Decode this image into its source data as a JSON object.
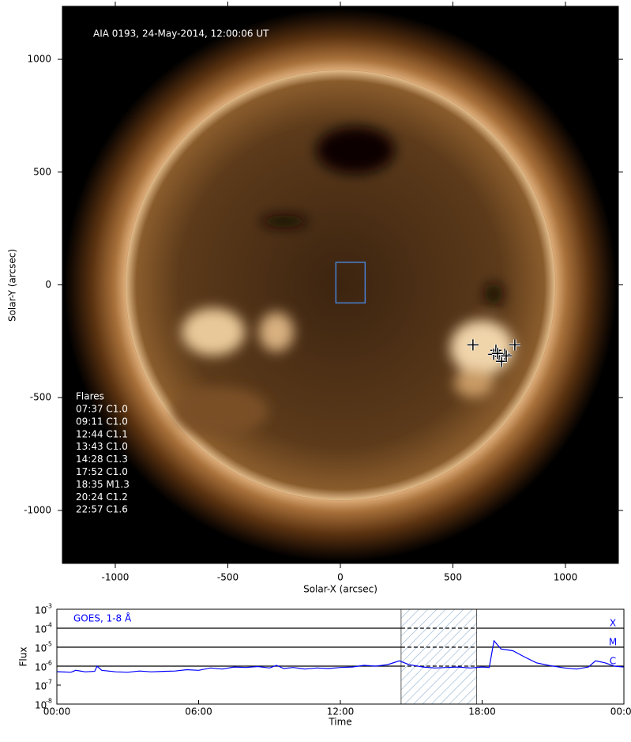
{
  "chart_data": [
    {
      "type": "image",
      "title": "AIA 0193, 24-May-2014, 12:00:06 UT",
      "xlabel": "Solar-X (arcsec)",
      "ylabel": "Solar-Y (arcsec)",
      "xlim": [
        -1235,
        1235
      ],
      "ylim": [
        -1235,
        1235
      ],
      "xticks": [
        -1000,
        -500,
        0,
        500,
        1000
      ],
      "yticks": [
        -1000,
        -500,
        0,
        500,
        1000
      ],
      "box": {
        "x": [
          -20,
          110
        ],
        "y": [
          -80,
          100
        ],
        "color": "#4a7fd0"
      },
      "flares_title": "Flares",
      "flares": [
        {
          "label": "07:37 C1.0",
          "x": 589,
          "y": -266
        },
        {
          "label": "09:11 C1.0",
          "x": 691,
          "y": -290
        },
        {
          "label": "12:44 C1.1",
          "x": 730,
          "y": -308
        },
        {
          "label": "13:43 C1.0",
          "x": 705,
          "y": -318
        },
        {
          "label": "14:28 C1.3",
          "x": 681,
          "y": -308
        },
        {
          "label": "17:52 C1.0",
          "x": 775,
          "y": -266
        },
        {
          "label": "18:35 M1.3",
          "x": 716,
          "y": -339
        },
        {
          "label": "20:24 C1.2",
          "x": 698,
          "y": -304
        },
        {
          "label": "22:57 C1.6",
          "x": 737,
          "y": -315
        }
      ]
    },
    {
      "type": "line",
      "xlabel": "Time",
      "ylabel": "Flux",
      "ylog": true,
      "xlim": [
        0,
        24
      ],
      "ylim": [
        1e-08,
        0.001
      ],
      "xticks": [
        {
          "value": 0,
          "label": "00:00"
        },
        {
          "value": 6,
          "label": "06:00"
        },
        {
          "value": 12,
          "label": "12:00"
        },
        {
          "value": 18,
          "label": "18:00"
        },
        {
          "value": 24,
          "label": "00:00"
        }
      ],
      "yticks": [
        {
          "value": 1e-08,
          "label": "10",
          "exponent": "-8"
        },
        {
          "value": 1e-07,
          "label": "10",
          "exponent": "-7"
        },
        {
          "value": 1e-06,
          "label": "10",
          "exponent": "-6"
        },
        {
          "value": 1e-05,
          "label": "10",
          "exponent": "-5"
        },
        {
          "value": 0.0001,
          "label": "10",
          "exponent": "-4"
        },
        {
          "value": 0.001,
          "label": "10",
          "exponent": "-3"
        }
      ],
      "levels": [
        {
          "value": 0.0001,
          "label": "X"
        },
        {
          "value": 1e-05,
          "label": "M"
        },
        {
          "value": 1e-06,
          "label": "C"
        }
      ],
      "highlight": [
        14.57,
        17.77
      ],
      "x": [
        0,
        0.6,
        0.8,
        1.2,
        1.6,
        1.7,
        1.9,
        2.5,
        3.0,
        3.5,
        4.0,
        4.5,
        5.0,
        5.5,
        6.0,
        6.5,
        7.0,
        7.5,
        8.0,
        8.5,
        9.0,
        9.3,
        9.6,
        10.0,
        10.5,
        11.0,
        11.5,
        12.0,
        12.5,
        13.0,
        13.5,
        14.0,
        14.5,
        14.9,
        15.5,
        16.0,
        16.5,
        17.0,
        17.5,
        18.0,
        18.3,
        18.5,
        18.8,
        19.3,
        19.8,
        20.3,
        20.8,
        21.5,
        22.0,
        22.5,
        22.8,
        23.2,
        23.6,
        24.0
      ],
      "series": [
        {
          "name": "GOES, 1-8 Å",
          "color": "#0000ff",
          "values": [
            5.1e-07,
            4.8e-07,
            6e-07,
            5e-07,
            5.3e-07,
            1e-06,
            6e-07,
            5e-07,
            4.8e-07,
            5.5e-07,
            5e-07,
            5.3e-07,
            5.5e-07,
            6.5e-07,
            6e-07,
            8e-07,
            7e-07,
            9e-07,
            8.5e-07,
            9.5e-07,
            8e-07,
            1.1e-06,
            7.5e-07,
            8.5e-07,
            7e-07,
            8e-07,
            7.5e-07,
            8.5e-07,
            9e-07,
            1.1e-06,
            1e-06,
            1.2e-06,
            1.9e-06,
            1.2e-06,
            9e-07,
            8e-07,
            8.5e-07,
            9e-07,
            8e-07,
            9e-07,
            8.5e-07,
            2.2e-05,
            8e-06,
            6.5e-06,
            3e-06,
            1.5e-06,
            1.1e-06,
            8e-07,
            7e-07,
            9e-07,
            1.9e-06,
            1.5e-06,
            1e-06,
            9e-07
          ]
        }
      ]
    }
  ]
}
